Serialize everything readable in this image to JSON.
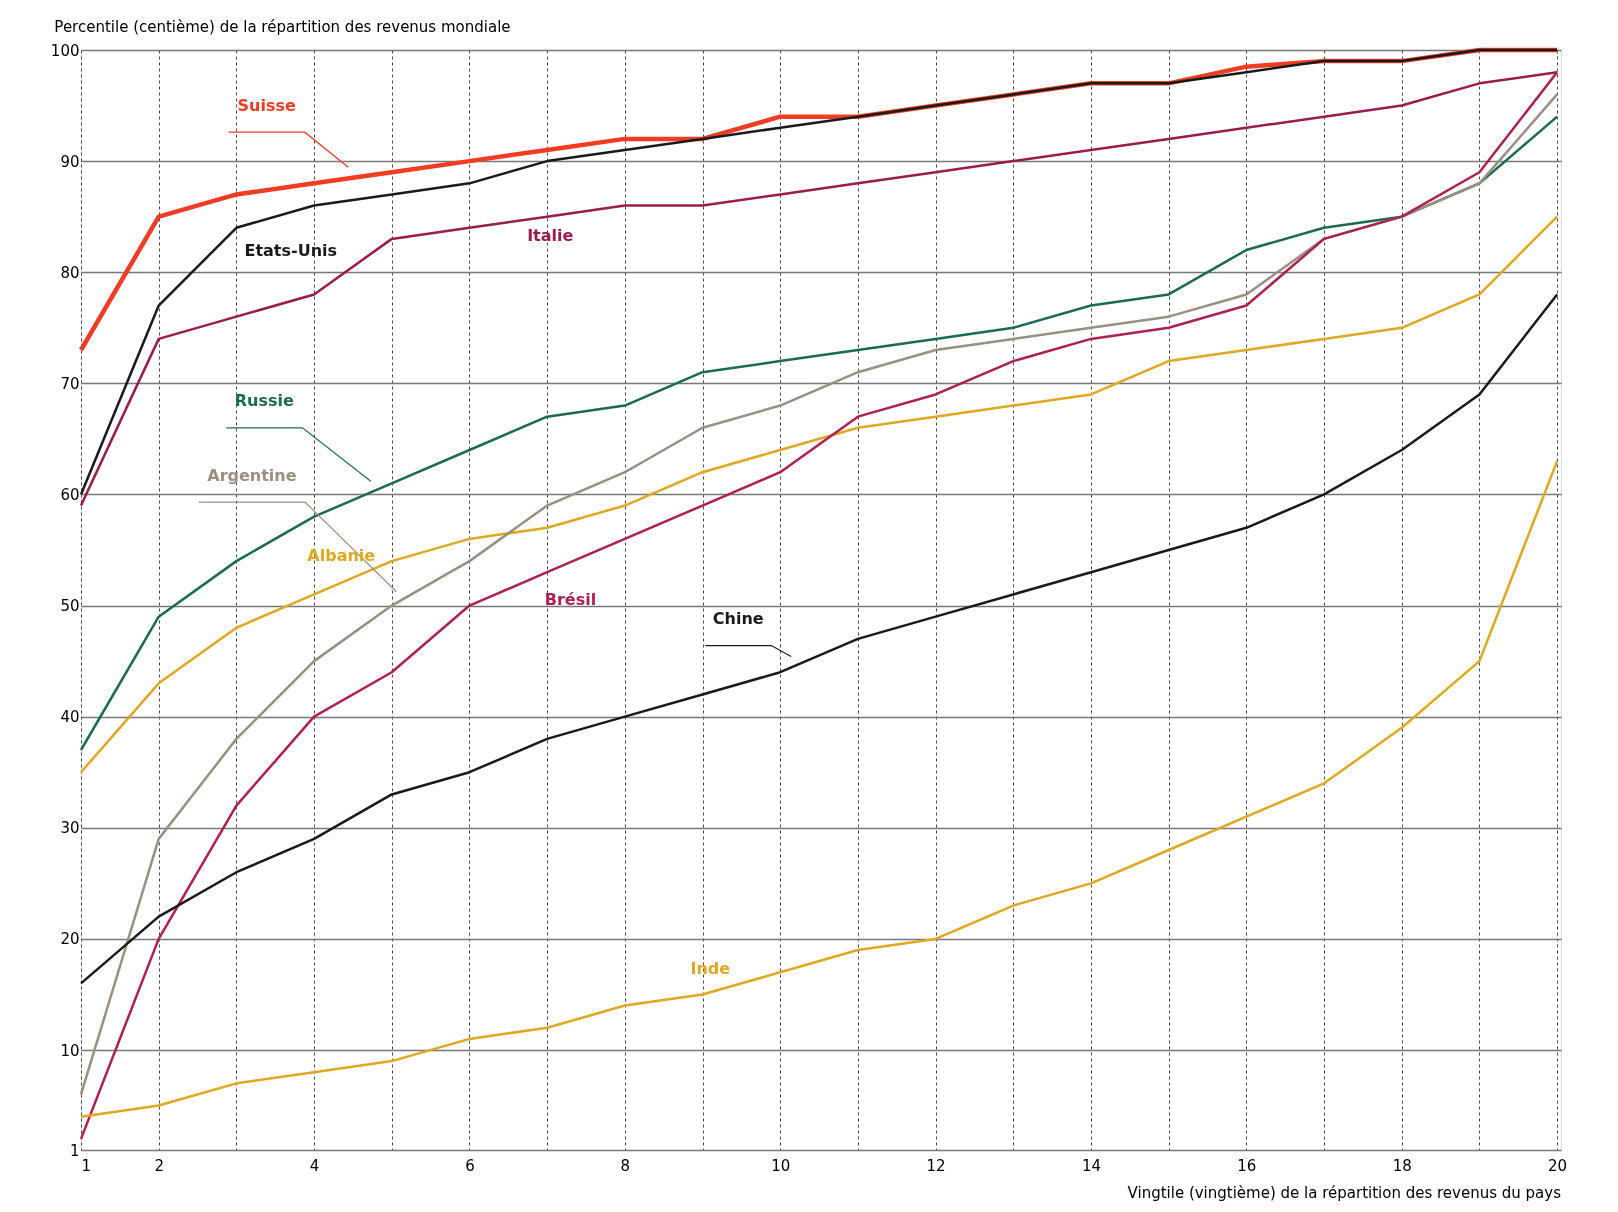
{
  "chart_data": {
    "type": "line",
    "ylabel": "Percentile (centième) de la répartition des revenus mondiale",
    "xlabel": "Vingtile (vingtième) de la répartition des revenus du pays",
    "x": [
      1,
      2,
      3,
      4,
      5,
      6,
      7,
      8,
      9,
      10,
      11,
      12,
      13,
      14,
      15,
      16,
      17,
      18,
      19,
      20
    ],
    "xlim": [
      1,
      20.05
    ],
    "ylim": [
      1,
      100
    ],
    "xticks": [
      1,
      2,
      {
        "value": 3,
        "label": null
      },
      4,
      {
        "value": 5,
        "label": null
      },
      6,
      {
        "value": 7,
        "label": null
      },
      8,
      {
        "value": 9,
        "label": null
      },
      10,
      {
        "value": 11,
        "label": null
      },
      12,
      {
        "value": 13,
        "label": null
      },
      14,
      {
        "value": 15,
        "label": null
      },
      16,
      {
        "value": 17,
        "label": null
      },
      18,
      {
        "value": 19,
        "label": null
      },
      20
    ],
    "yticks": [
      1,
      10,
      20,
      30,
      40,
      50,
      60,
      70,
      80,
      90,
      100
    ],
    "grid": true,
    "legend": false,
    "marker": "none",
    "line_style": "solid",
    "series": [
      {
        "name": "Suisse",
        "color": "#f03c23",
        "values": [
          73,
          85,
          87,
          88,
          89,
          90,
          91,
          92,
          92,
          94,
          94,
          95,
          96,
          97,
          97,
          98.5,
          99,
          99,
          100,
          100
        ]
      },
      {
        "name": "Etats-Unis",
        "color": "#1a1a1a",
        "values": [
          60,
          77,
          84,
          86,
          87,
          88,
          90,
          91,
          92,
          93,
          94,
          95,
          96,
          97,
          97,
          98,
          99,
          99,
          100,
          100
        ]
      },
      {
        "name": "Italie",
        "color": "#9b1b4b",
        "values": [
          59,
          74,
          76,
          78,
          83,
          84,
          85,
          86,
          86,
          87,
          88,
          89,
          90,
          91,
          92,
          93,
          94,
          95,
          97,
          98
        ]
      },
      {
        "name": "Russie",
        "color": "#1b6b50",
        "values": [
          37,
          49,
          54,
          58,
          61,
          64,
          67,
          68,
          71,
          72,
          73,
          74,
          75,
          77,
          78,
          82,
          84,
          85,
          88,
          94
        ]
      },
      {
        "name": "Albanie",
        "color": "#e0a820",
        "values": [
          35,
          43,
          48,
          51,
          54,
          56,
          57,
          59,
          62,
          64,
          66,
          67,
          68,
          69,
          72,
          73,
          74,
          75,
          78,
          85
        ]
      },
      {
        "name": "Argentine",
        "color": "#9a8f80",
        "values": [
          6,
          29,
          38,
          45,
          50,
          54,
          59,
          62,
          66,
          68,
          71,
          73,
          74,
          75,
          76,
          78,
          83,
          85,
          88,
          96
        ]
      },
      {
        "name": "Brésil",
        "color": "#b0204e",
        "values": [
          2,
          20,
          32,
          40,
          44,
          50,
          53,
          56,
          59,
          62,
          67,
          69,
          72,
          74,
          75,
          77,
          83,
          85,
          89,
          98
        ]
      },
      {
        "name": "Chine",
        "color": "#1a1a1a",
        "values": [
          16,
          22,
          26,
          29,
          33,
          35,
          38,
          40,
          42,
          44,
          47,
          49,
          51,
          53,
          55,
          57,
          60,
          64,
          69,
          78
        ]
      },
      {
        "name": "Inde",
        "color": "#e0a820",
        "values": [
          4,
          5,
          7,
          8,
          9,
          11,
          12,
          14,
          15,
          17,
          19,
          20,
          23,
          25,
          28,
          31,
          34,
          39,
          45,
          63
        ]
      }
    ]
  }
}
